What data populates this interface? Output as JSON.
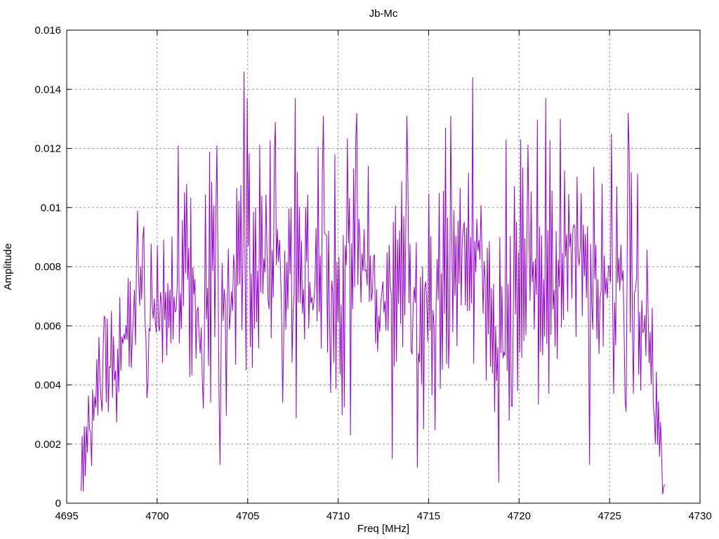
{
  "chart_data": {
    "type": "line",
    "title": "Jb-Mc",
    "xlabel": "Freq [MHz]",
    "ylabel": "Amplitude",
    "xlim": [
      4695,
      4730
    ],
    "ylim": [
      0,
      0.016
    ],
    "grid": true,
    "legend": "none",
    "xticks": [
      4695,
      4700,
      4705,
      4710,
      4715,
      4720,
      4725,
      4730
    ],
    "xtick_labels": [
      "4695",
      "4700",
      "4705",
      "4710",
      "4715",
      "4720",
      "4725",
      "4730"
    ],
    "yticks": [
      0,
      0.002,
      0.004,
      0.006,
      0.008,
      0.01,
      0.012,
      0.014,
      0.016
    ],
    "ytick_labels": [
      "0",
      "0.002",
      "0.004",
      "0.006",
      "0.008",
      "0.01",
      "0.012",
      "0.014",
      "0.016"
    ],
    "colors": {
      "line": "#9400D3",
      "grid": "#999999",
      "axis": "#000000",
      "text": "#000000",
      "background": "#ffffff"
    },
    "series": [
      {
        "name": "Jb-Mc amplitude spectrum",
        "color": "#9400D3",
        "style": "dense noise line",
        "x_start": 4695.8,
        "x_end": 4728.05,
        "n_points": 560,
        "seed": 7,
        "envelope": {
          "x": [
            4695.8,
            4696.3,
            4697,
            4698,
            4699,
            4699.6,
            4700.3,
            4701.2,
            4702,
            4703,
            4703.6,
            4704.3,
            4704.9,
            4705.5,
            4706.3,
            4707,
            4707.7,
            4708.5,
            4709.3,
            4710,
            4710.8,
            4711.5,
            4712.3,
            4713,
            4713.8,
            4714.5,
            4715.2,
            4716,
            4716.8,
            4717.5,
            4718.2,
            4719,
            4719.8,
            4720.5,
            4721.3,
            4722,
            4722.8,
            4723.5,
            4724.3,
            4725,
            4725.7,
            4726.3,
            4726.9,
            4727.4,
            4727.8,
            4728.05
          ],
          "hi": [
            0.0032,
            0.0045,
            0.0062,
            0.008,
            0.0099,
            0.0088,
            0.0092,
            0.0121,
            0.0103,
            0.0121,
            0.0108,
            0.0116,
            0.0146,
            0.012,
            0.0127,
            0.0124,
            0.0137,
            0.0112,
            0.0131,
            0.011,
            0.0132,
            0.0116,
            0.011,
            0.012,
            0.0131,
            0.0117,
            0.0122,
            0.0131,
            0.012,
            0.0144,
            0.0112,
            0.0123,
            0.011,
            0.0123,
            0.0137,
            0.0122,
            0.013,
            0.0127,
            0.0122,
            0.0125,
            0.0118,
            0.0132,
            0.0095,
            0.0068,
            0.004,
            0.001
          ],
          "lo": [
            0.0006,
            0.0012,
            0.0018,
            0.003,
            0.0036,
            0.0035,
            0.0035,
            0.0032,
            0.0042,
            0.0015,
            0.0028,
            0.0032,
            0.0024,
            0.004,
            0.0042,
            0.003,
            0.0032,
            0.0035,
            0.0042,
            0.0024,
            0.0036,
            0.0038,
            0.0042,
            0.0032,
            0.0032,
            0.0015,
            0.0022,
            0.0028,
            0.0042,
            0.0042,
            0.0032,
            0.001,
            0.0036,
            0.0038,
            0.0025,
            0.0042,
            0.0046,
            0.0032,
            0.0032,
            0.0032,
            0.0032,
            0.0032,
            0.0022,
            0.0015,
            0.0008,
            0.0003
          ]
        },
        "pinned_points": [
          [
            4695.9,
            0.0004
          ],
          [
            4698.9,
            0.0099
          ],
          [
            4701.15,
            0.0121
          ],
          [
            4703.3,
            0.0121
          ],
          [
            4703.45,
            0.0013
          ],
          [
            4704.8,
            0.0146
          ],
          [
            4706.55,
            0.0129
          ],
          [
            4707.6,
            0.0137
          ],
          [
            4709.2,
            0.0131
          ],
          [
            4710.7,
            0.0023
          ],
          [
            4711.05,
            0.0132
          ],
          [
            4713.0,
            0.0015
          ],
          [
            4713.8,
            0.0131
          ],
          [
            4714.4,
            0.0012
          ],
          [
            4716.2,
            0.0131
          ],
          [
            4717.45,
            0.0144
          ],
          [
            4718.9,
            0.0007
          ],
          [
            4719.3,
            0.0123
          ],
          [
            4720.1,
            0.0123
          ],
          [
            4721.5,
            0.0137
          ],
          [
            4722.3,
            0.013
          ],
          [
            4723.9,
            0.0013
          ],
          [
            4725.1,
            0.0125
          ],
          [
            4726.05,
            0.0132
          ],
          [
            4727.95,
            0.0003
          ]
        ]
      }
    ]
  }
}
